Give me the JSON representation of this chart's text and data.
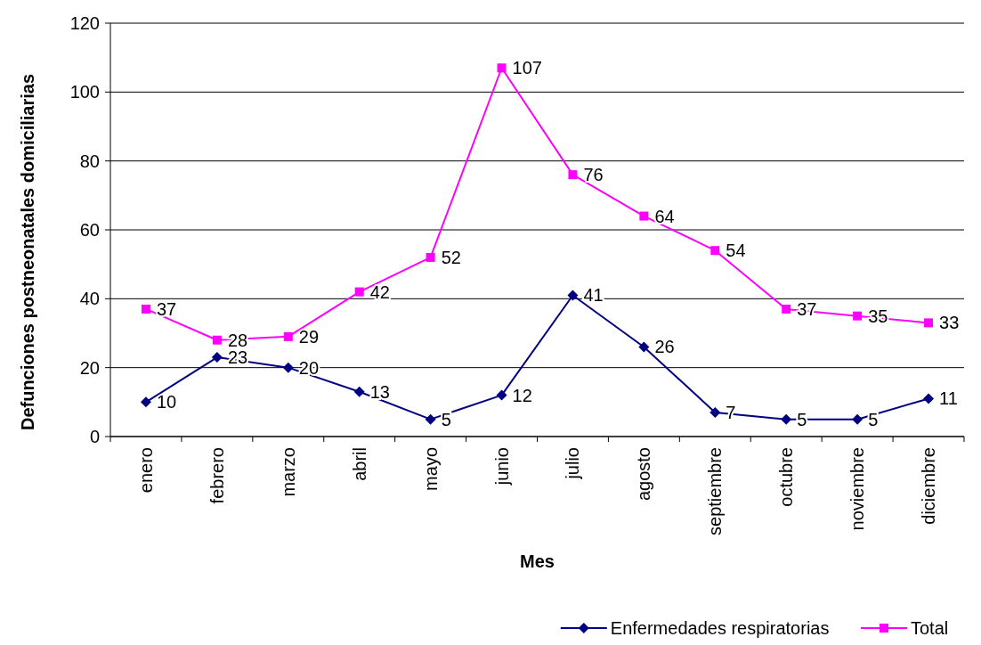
{
  "chart_data": {
    "type": "line",
    "xlabel": "Mes",
    "ylabel": "Defunciones postneonatales domiciliarias",
    "categories": [
      "enero",
      "febrero",
      "marzo",
      "abril",
      "mayo",
      "junio",
      "julio",
      "agosto",
      "septiembre",
      "octubre",
      "noviembre",
      "diciembre"
    ],
    "series": [
      {
        "name": "Enfermedades respiratorias",
        "color": "#000080",
        "marker": "diamond",
        "values": [
          10,
          23,
          20,
          13,
          5,
          12,
          41,
          26,
          7,
          5,
          5,
          11
        ]
      },
      {
        "name": "Total",
        "color": "#ff00ff",
        "marker": "square",
        "values": [
          37,
          28,
          29,
          42,
          52,
          107,
          76,
          64,
          54,
          37,
          35,
          33
        ]
      }
    ],
    "ylim": [
      0,
      120
    ],
    "yticks": [
      0,
      20,
      40,
      60,
      80,
      100,
      120
    ],
    "grid": "y",
    "legend": "bottom right",
    "data_labels": true,
    "line_style": "solid"
  }
}
